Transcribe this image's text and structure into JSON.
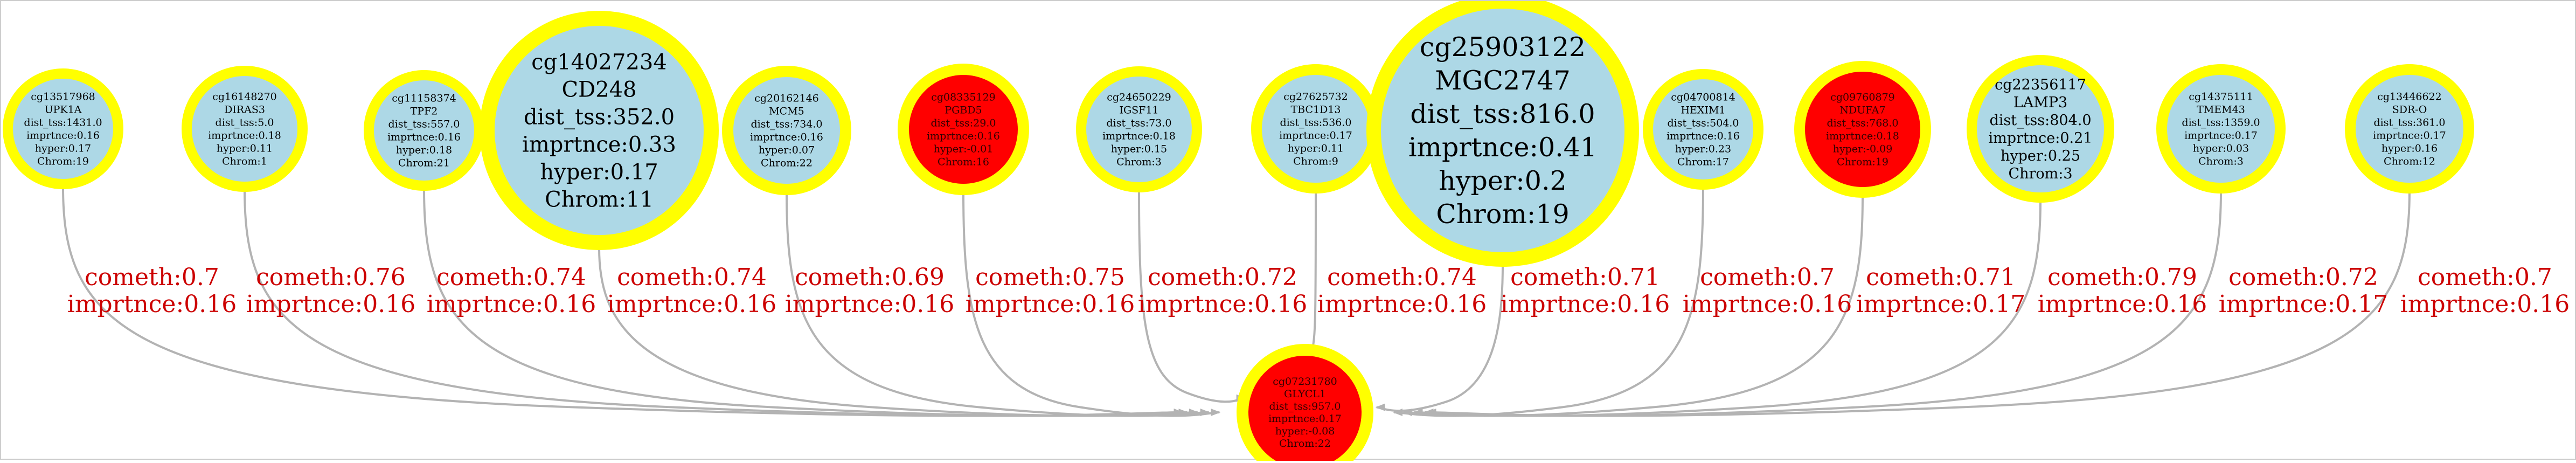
{
  "colors": {
    "ring": "#ffff00",
    "node_fill_default": "#add8e6",
    "node_fill_highlight": "#ff0000",
    "node_text_default": "#000000",
    "node_text_highlight": "#330000",
    "edge": "#b3b3b3",
    "edge_label": "#cc0000",
    "background": "#ffffff"
  },
  "target": {
    "lines": [
      "cg07231780",
      "GLYCL1",
      "dist_tss:957.0",
      "imprtnce:0.17",
      "hyper:-0.08",
      "Chrom:22"
    ],
    "highlight": true
  },
  "nodes": [
    {
      "lines": [
        "cg13517968",
        "UPK1A",
        "dist_tss:1431.0",
        "imprtnce:0.16",
        "hyper:0.17",
        "Chrom:19"
      ],
      "highlight": false,
      "edge_label": [
        "cometh:0.7",
        "imprtnce:0.16"
      ]
    },
    {
      "lines": [
        "cg16148270",
        "DIRAS3",
        "dist_tss:5.0",
        "imprtnce:0.18",
        "hyper:0.11",
        "Chrom:1"
      ],
      "highlight": false,
      "edge_label": [
        "cometh:0.76",
        "imprtnce:0.16"
      ]
    },
    {
      "lines": [
        "cg11158374",
        "TPF2",
        "dist_tss:557.0",
        "imprtnce:0.16",
        "hyper:0.18",
        "Chrom:21"
      ],
      "highlight": false,
      "edge_label": [
        "cometh:0.74",
        "imprtnce:0.16"
      ]
    },
    {
      "lines": [
        "cg14027234",
        "CD248",
        "dist_tss:352.0",
        "imprtnce:0.33",
        "hyper:0.17",
        "Chrom:11"
      ],
      "highlight": false,
      "edge_label": [
        "cometh:0.74",
        "imprtnce:0.16"
      ]
    },
    {
      "lines": [
        "cg20162146",
        "MCM5",
        "dist_tss:734.0",
        "imprtnce:0.16",
        "hyper:0.07",
        "Chrom:22"
      ],
      "highlight": false,
      "edge_label": [
        "cometh:0.69",
        "imprtnce:0.16"
      ]
    },
    {
      "lines": [
        "cg08335129",
        "PGBD5",
        "dist_tss:29.0",
        "imprtnce:0.16",
        "hyper:-0.01",
        "Chrom:16"
      ],
      "highlight": true,
      "edge_label": [
        "cometh:0.75",
        "imprtnce:0.16"
      ]
    },
    {
      "lines": [
        "cg24650229",
        "IGSF11",
        "dist_tss:73.0",
        "imprtnce:0.18",
        "hyper:0.15",
        "Chrom:3"
      ],
      "highlight": false,
      "edge_label": [
        "cometh:0.72",
        "imprtnce:0.16"
      ]
    },
    {
      "lines": [
        "cg27625732",
        "TBC1D13",
        "dist_tss:536.0",
        "imprtnce:0.17",
        "hyper:0.11",
        "Chrom:9"
      ],
      "highlight": false,
      "edge_label": [
        "cometh:0.74",
        "imprtnce:0.16"
      ]
    },
    {
      "lines": [
        "cg25903122",
        "MGC2747",
        "dist_tss:816.0",
        "imprtnce:0.41",
        "hyper:0.2",
        "Chrom:19"
      ],
      "highlight": false,
      "edge_label": [
        "cometh:0.71",
        "imprtnce:0.16"
      ]
    },
    {
      "lines": [
        "cg04700814",
        "HEXIM1",
        "dist_tss:504.0",
        "imprtnce:0.16",
        "hyper:0.23",
        "Chrom:17"
      ],
      "highlight": false,
      "edge_label": [
        "cometh:0.7",
        "imprtnce:0.16"
      ]
    },
    {
      "lines": [
        "cg09760879",
        "NDUFA7",
        "dist_tss:768.0",
        "imprtnce:0.18",
        "hyper:-0.09",
        "Chrom:19"
      ],
      "highlight": true,
      "edge_label": [
        "cometh:0.71",
        "imprtnce:0.17"
      ]
    },
    {
      "lines": [
        "cg22356117",
        "LAMP3",
        "dist_tss:804.0",
        "imprtnce:0.21",
        "hyper:0.25",
        "Chrom:3"
      ],
      "highlight": false,
      "edge_label": [
        "cometh:0.79",
        "imprtnce:0.16"
      ]
    },
    {
      "lines": [
        "cg14375111",
        "TMEM43",
        "dist_tss:1359.0",
        "imprtnce:0.17",
        "hyper:0.03",
        "Chrom:3"
      ],
      "highlight": false,
      "edge_label": [
        "cometh:0.72",
        "imprtnce:0.17"
      ]
    },
    {
      "lines": [
        "cg13446622",
        "SDR-O",
        "dist_tss:361.0",
        "imprtnce:0.17",
        "hyper:0.16",
        "Chrom:12"
      ],
      "highlight": false,
      "edge_label": [
        "cometh:0.7",
        "imprtnce:0.16"
      ]
    }
  ]
}
